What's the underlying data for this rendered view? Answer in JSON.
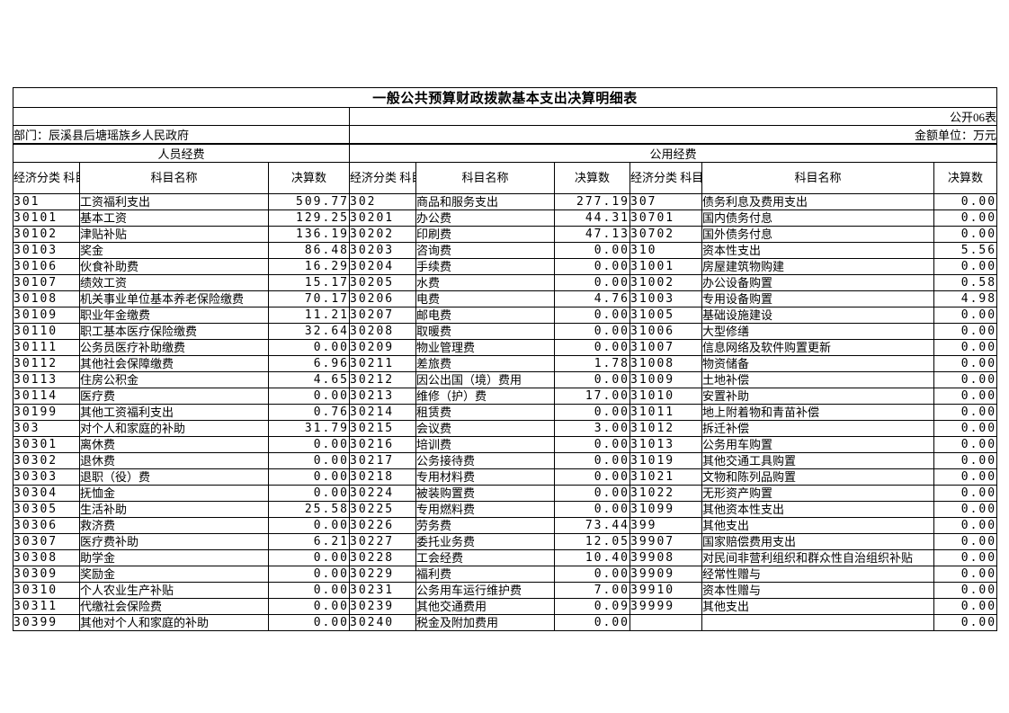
{
  "header": {
    "title": "一般公共预算财政拨款基本支出决算明细表",
    "table_label": "公开06表",
    "department": "部门：辰溪县后塘瑶族乡人民政府",
    "unit": "金额单位：万元"
  },
  "groups": [
    "人员经费",
    "公用经费"
  ],
  "columns": {
    "code": "经济分类\n科目编码",
    "name": "科目名称",
    "value": "决算数"
  },
  "rows": [
    [
      "301",
      "工资福利支出",
      "509.77",
      "302",
      "商品和服务支出",
      "277.19",
      "307",
      "债务利息及费用支出",
      "0.00"
    ],
    [
      "30101",
      "基本工资",
      "129.25",
      "30201",
      "办公费",
      "44.31",
      "30701",
      "国内债务付息",
      "0.00"
    ],
    [
      "30102",
      "津贴补贴",
      "136.19",
      "30202",
      "印刷费",
      "47.13",
      "30702",
      "国外债务付息",
      "0.00"
    ],
    [
      "30103",
      "奖金",
      "86.48",
      "30203",
      "咨询费",
      "0.00",
      "310",
      "资本性支出",
      "5.56"
    ],
    [
      "30106",
      "伙食补助费",
      "16.29",
      "30204",
      "手续费",
      "0.00",
      "31001",
      "房屋建筑物购建",
      "0.00"
    ],
    [
      "30107",
      "绩效工资",
      "15.17",
      "30205",
      "水费",
      "0.00",
      "31002",
      "办公设备购置",
      "0.58"
    ],
    [
      "30108",
      "机关事业单位基本养老保险缴费",
      "70.17",
      "30206",
      "电费",
      "4.76",
      "31003",
      "专用设备购置",
      "4.98"
    ],
    [
      "30109",
      "职业年金缴费",
      "11.21",
      "30207",
      "邮电费",
      "0.00",
      "31005",
      "基础设施建设",
      "0.00"
    ],
    [
      "30110",
      "职工基本医疗保险缴费",
      "32.64",
      "30208",
      "取暖费",
      "0.00",
      "31006",
      "大型修缮",
      "0.00"
    ],
    [
      "30111",
      "公务员医疗补助缴费",
      "0.00",
      "30209",
      "物业管理费",
      "0.00",
      "31007",
      "信息网络及软件购置更新",
      "0.00"
    ],
    [
      "30112",
      "其他社会保障缴费",
      "6.96",
      "30211",
      "差旅费",
      "1.78",
      "31008",
      "物资储备",
      "0.00"
    ],
    [
      "30113",
      "住房公积金",
      "4.65",
      "30212",
      "因公出国（境）费用",
      "0.00",
      "31009",
      "土地补偿",
      "0.00"
    ],
    [
      "30114",
      "医疗费",
      "0.00",
      "30213",
      "维修（护）费",
      "17.00",
      "31010",
      "安置补助",
      "0.00"
    ],
    [
      "30199",
      "其他工资福利支出",
      "0.76",
      "30214",
      "租赁费",
      "0.00",
      "31011",
      "地上附着物和青苗补偿",
      "0.00"
    ],
    [
      "303",
      "对个人和家庭的补助",
      "31.79",
      "30215",
      "会议费",
      "3.00",
      "31012",
      "拆迁补偿",
      "0.00"
    ],
    [
      "30301",
      "离休费",
      "0.00",
      "30216",
      "培训费",
      "0.00",
      "31013",
      "公务用车购置",
      "0.00"
    ],
    [
      "30302",
      "退休费",
      "0.00",
      "30217",
      "公务接待费",
      "0.00",
      "31019",
      "其他交通工具购置",
      "0.00"
    ],
    [
      "30303",
      "退职（役）费",
      "0.00",
      "30218",
      "专用材料费",
      "0.00",
      "31021",
      "文物和陈列品购置",
      "0.00"
    ],
    [
      "30304",
      "抚恤金",
      "0.00",
      "30224",
      "被装购置费",
      "0.00",
      "31022",
      "无形资产购置",
      "0.00"
    ],
    [
      "30305",
      "生活补助",
      "25.58",
      "30225",
      "专用燃料费",
      "0.00",
      "31099",
      "其他资本性支出",
      "0.00"
    ],
    [
      "30306",
      "救济费",
      "0.00",
      "30226",
      "劳务费",
      "73.44",
      "399",
      "其他支出",
      "0.00"
    ],
    [
      "30307",
      "医疗费补助",
      "6.21",
      "30227",
      "委托业务费",
      "12.05",
      "39907",
      "国家赔偿费用支出",
      "0.00"
    ],
    [
      "30308",
      "助学金",
      "0.00",
      "30228",
      "工会经费",
      "10.40",
      "39908",
      "对民间非营利组织和群众性自治组织补贴",
      "0.00"
    ],
    [
      "30309",
      "奖励金",
      "0.00",
      "30229",
      "福利费",
      "0.00",
      "39909",
      "经常性赠与",
      "0.00"
    ],
    [
      "30310",
      "个人农业生产补贴",
      "0.00",
      "30231",
      "公务用车运行维护费",
      "7.00",
      "39910",
      "资本性赠与",
      "0.00"
    ],
    [
      "30311",
      "代缴社会保险费",
      "0.00",
      "30239",
      "其他交通费用",
      "0.09",
      "39999",
      "其他支出",
      "0.00"
    ],
    [
      "30399",
      "其他对个人和家庭的补助",
      "0.00",
      "30240",
      "税金及附加费用",
      "0.00",
      "",
      "",
      "0.00"
    ]
  ]
}
